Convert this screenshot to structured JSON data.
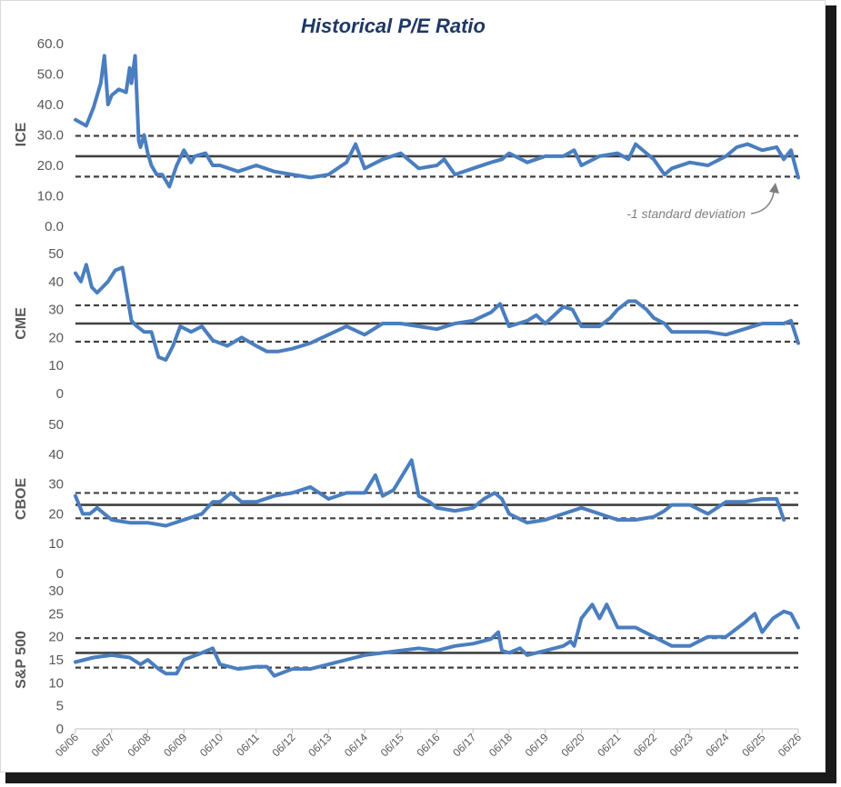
{
  "title": "Historical P/E Ratio",
  "annotation": "-1 standard deviation",
  "colors": {
    "series": "#4a7ebf",
    "mean": "#404040",
    "band": "#404040",
    "title": "#1f3864",
    "text": "#595959"
  },
  "chart_data": [
    {
      "type": "line",
      "ylabel": "ICE",
      "ylim": [
        0,
        60
      ],
      "ticks": [
        "60.0",
        "50.0",
        "40.0",
        "30.0",
        "20.0",
        "10.0",
        "0.0"
      ],
      "tick_values": [
        60,
        50,
        40,
        30,
        20,
        10,
        0
      ],
      "mean": 23,
      "std_band": [
        16.3,
        29.7
      ],
      "x": [
        2006.0,
        2006.3,
        2006.5,
        2006.7,
        2006.8,
        2006.9,
        2007.0,
        2007.2,
        2007.4,
        2007.5,
        2007.55,
        2007.65,
        2007.75,
        2007.8,
        2007.9,
        2008.0,
        2008.1,
        2008.25,
        2008.4,
        2008.6,
        2008.8,
        2009.0,
        2009.2,
        2009.3,
        2009.6,
        2009.8,
        2010.0,
        2010.5,
        2011.0,
        2011.5,
        2012.0,
        2012.5,
        2013.0,
        2013.5,
        2013.75,
        2014.0,
        2014.5,
        2015.0,
        2015.5,
        2016.0,
        2016.2,
        2016.5,
        2017.0,
        2017.5,
        2017.8,
        2018.0,
        2018.5,
        2019.0,
        2019.5,
        2019.8,
        2020.0,
        2020.5,
        2021.0,
        2021.3,
        2021.5,
        2021.8,
        2022.0,
        2022.3,
        2022.5,
        2023.0,
        2023.5,
        2024.0,
        2024.3,
        2024.6,
        2025.0,
        2025.4,
        2025.6,
        2025.8,
        2026.0
      ],
      "y": [
        35,
        33,
        39,
        47,
        56,
        40,
        43,
        45,
        44,
        52,
        47,
        56,
        28,
        26,
        30,
        24,
        20,
        17,
        17,
        13,
        20,
        25,
        21,
        23,
        24,
        20,
        20,
        18,
        20,
        18,
        17,
        16,
        17,
        21,
        27,
        19,
        22,
        24,
        19,
        20,
        22,
        17,
        19,
        21,
        22,
        24,
        21,
        23,
        23,
        25,
        20,
        23,
        24,
        22,
        27,
        24,
        22,
        17,
        19,
        21,
        20,
        23,
        26,
        27,
        25,
        26,
        22,
        25,
        16
      ]
    },
    {
      "type": "line",
      "ylabel": "CME",
      "ylim": [
        0,
        50
      ],
      "ticks": [
        "50",
        "40",
        "30",
        "20",
        "10",
        "0"
      ],
      "tick_values": [
        50,
        40,
        30,
        20,
        10,
        0
      ],
      "mean": 25,
      "std_band": [
        18.5,
        31.5
      ],
      "x": [
        2006.0,
        2006.15,
        2006.3,
        2006.45,
        2006.6,
        2006.75,
        2006.9,
        2007.1,
        2007.3,
        2007.55,
        2007.7,
        2007.9,
        2008.1,
        2008.3,
        2008.5,
        2008.7,
        2008.9,
        2009.2,
        2009.5,
        2009.8,
        2010.2,
        2010.6,
        2011.0,
        2011.3,
        2011.6,
        2012.0,
        2012.5,
        2013.0,
        2013.5,
        2014.0,
        2014.5,
        2015.0,
        2015.5,
        2016.0,
        2016.5,
        2017.0,
        2017.5,
        2017.75,
        2018.0,
        2018.5,
        2018.75,
        2019.0,
        2019.5,
        2019.75,
        2020.0,
        2020.5,
        2020.8,
        2021.0,
        2021.3,
        2021.5,
        2021.8,
        2022.0,
        2022.3,
        2022.5,
        2023.0,
        2023.5,
        2024.0,
        2024.5,
        2025.0,
        2025.3,
        2025.6,
        2025.8,
        2026.0
      ],
      "y": [
        43,
        40,
        46,
        38,
        36,
        38,
        40,
        44,
        45,
        26,
        24,
        22,
        22,
        13,
        12,
        17,
        24,
        22,
        24,
        19,
        17,
        20,
        17,
        15,
        15,
        16,
        18,
        21,
        24,
        21,
        25,
        25,
        24,
        23,
        25,
        26,
        29,
        32,
        24,
        26,
        28,
        25,
        31,
        30,
        24,
        24,
        27,
        30,
        33,
        33,
        30,
        27,
        25,
        22,
        22,
        22,
        21,
        23,
        25,
        25,
        25,
        26,
        18
      ]
    },
    {
      "type": "line",
      "ylabel": "CBOE",
      "ylim": [
        0,
        50
      ],
      "ticks": [
        "50",
        "40",
        "30",
        "20",
        "10",
        "0"
      ],
      "tick_values": [
        50,
        40,
        30,
        20,
        10,
        0
      ],
      "mean": 23,
      "std_band": [
        18.5,
        27
      ],
      "x": [
        2006.0,
        2006.2,
        2006.4,
        2006.6,
        2006.8,
        2007.0,
        2007.5,
        2008.0,
        2008.5,
        2009.0,
        2009.5,
        2009.8,
        2010.0,
        2010.3,
        2010.6,
        2011.0,
        2011.5,
        2012.0,
        2012.5,
        2013.0,
        2013.5,
        2014.0,
        2014.3,
        2014.5,
        2014.8,
        2015.0,
        2015.3,
        2015.5,
        2015.8,
        2016.0,
        2016.5,
        2017.0,
        2017.3,
        2017.6,
        2017.8,
        2018.0,
        2018.5,
        2019.0,
        2019.5,
        2020.0,
        2020.5,
        2021.0,
        2021.5,
        2022.0,
        2022.3,
        2022.5,
        2023.0,
        2023.5,
        2024.0,
        2024.5,
        2025.0,
        2025.4,
        2025.6
      ],
      "y": [
        26,
        20,
        20,
        22,
        20,
        18,
        17,
        17,
        16,
        18,
        20,
        24,
        24,
        27,
        24,
        24,
        26,
        27,
        29,
        25,
        27,
        27,
        33,
        26,
        28,
        32,
        38,
        26,
        24,
        22,
        21,
        22,
        25,
        27,
        25,
        20,
        17,
        18,
        20,
        22,
        20,
        18,
        18,
        19,
        21,
        23,
        23,
        20,
        24,
        24,
        25,
        25,
        18
      ]
    },
    {
      "type": "line",
      "ylabel": "S&P 500",
      "ylim": [
        0,
        30
      ],
      "ticks": [
        "30",
        "25",
        "20",
        "15",
        "10",
        "5",
        "0"
      ],
      "tick_values": [
        30,
        25,
        20,
        15,
        10,
        5,
        0
      ],
      "mean": 16.5,
      "std_band": [
        13.3,
        19.7
      ],
      "x": [
        2006.0,
        2006.5,
        2007.0,
        2007.5,
        2007.8,
        2008.0,
        2008.3,
        2008.5,
        2008.8,
        2009.0,
        2009.5,
        2009.8,
        2010.0,
        2010.5,
        2011.0,
        2011.3,
        2011.5,
        2012.0,
        2012.5,
        2013.0,
        2013.5,
        2014.0,
        2014.5,
        2015.0,
        2015.5,
        2016.0,
        2016.5,
        2017.0,
        2017.5,
        2017.7,
        2017.8,
        2018.0,
        2018.3,
        2018.5,
        2019.0,
        2019.5,
        2019.7,
        2019.8,
        2020.0,
        2020.3,
        2020.5,
        2020.7,
        2021.0,
        2021.5,
        2022.0,
        2022.5,
        2023.0,
        2023.5,
        2024.0,
        2024.5,
        2024.8,
        2025.0,
        2025.3,
        2025.6,
        2025.8,
        2026.0
      ],
      "y": [
        14.5,
        15.5,
        16,
        15.5,
        14,
        15,
        13,
        12,
        12,
        15,
        16.5,
        17.5,
        14,
        13,
        13.5,
        13.5,
        11.5,
        13,
        13,
        14,
        15,
        16,
        16.5,
        17,
        17.5,
        17,
        18,
        18.5,
        19.5,
        21,
        17,
        16.5,
        17.5,
        16,
        17,
        18,
        19,
        18,
        24,
        27,
        24,
        27,
        22,
        22,
        20,
        18,
        18,
        20,
        20,
        23,
        25,
        21,
        24,
        25.5,
        25,
        22
      ]
    }
  ],
  "x_ticks": [
    "06/06",
    "06/07",
    "06/08",
    "06/09",
    "06/10",
    "06/11",
    "06/12",
    "06/13",
    "06/14",
    "06/15",
    "06/16",
    "06/17",
    "06/18",
    "06/19",
    "06/20",
    "06/21",
    "06/22",
    "06/23",
    "06/24",
    "06/25",
    "06/26"
  ],
  "x_tick_values": [
    2006,
    2007,
    2008,
    2009,
    2010,
    2011,
    2012,
    2013,
    2014,
    2015,
    2016,
    2017,
    2018,
    2019,
    2020,
    2021,
    2022,
    2023,
    2024,
    2025,
    2026
  ]
}
